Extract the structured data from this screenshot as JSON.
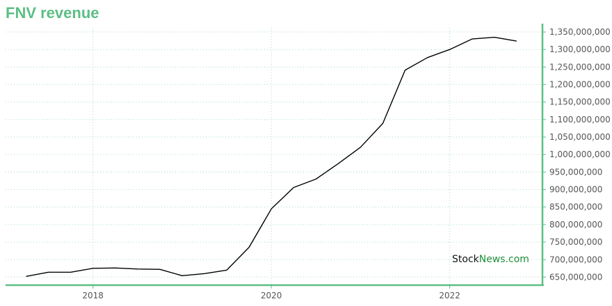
{
  "watermark": {
    "part1": "Stock",
    "part2": "News",
    "part3": ".com"
  },
  "colors": {
    "title": "#5cbf84",
    "axis": "#5cbf84",
    "grid": "#a8dcc0",
    "line": "#000000"
  },
  "chart_data": {
    "type": "line",
    "title": "FNV revenue",
    "xlabel": "",
    "ylabel": "",
    "x_ticks": [
      2018,
      2020,
      2022
    ],
    "x_range": [
      2017.02,
      2023.04
    ],
    "y_ticks": [
      650000000,
      700000000,
      750000000,
      800000000,
      850000000,
      900000000,
      950000000,
      1000000000,
      1050000000,
      1100000000,
      1150000000,
      1200000000,
      1250000000,
      1300000000,
      1350000000
    ],
    "y_tick_labels": [
      "650,000,000",
      "700,000,000",
      "750,000,000",
      "800,000,000",
      "850,000,000",
      "900,000,000",
      "950,000,000",
      "1,000,000,000",
      "1,050,000,000",
      "1,100,000,000",
      "1,150,000,000",
      "1,200,000,000",
      "1,250,000,000",
      "1,300,000,000",
      "1,350,000,000"
    ],
    "ylim": [
      627000000,
      1362000000
    ],
    "grid": true,
    "y_axis_position": "right",
    "series": [
      {
        "x": [
          2017.25,
          2017.5,
          2017.75,
          2018.0,
          2018.25,
          2018.5,
          2018.75,
          2019.0,
          2019.25,
          2019.5,
          2019.75,
          2020.0,
          2020.25,
          2020.5,
          2020.75,
          2021.0,
          2021.25,
          2021.5,
          2021.75,
          2022.0,
          2022.25,
          2022.5,
          2022.75
        ],
        "values": [
          652000000,
          664000000,
          664000000,
          675000000,
          676000000,
          673000000,
          672000000,
          654000000,
          660000000,
          670000000,
          735000000,
          845000000,
          906000000,
          930000000,
          974000000,
          1021000000,
          1089000000,
          1241000000,
          1277000000,
          1300000000,
          1330000000,
          1335000000,
          1324000000
        ]
      }
    ]
  }
}
